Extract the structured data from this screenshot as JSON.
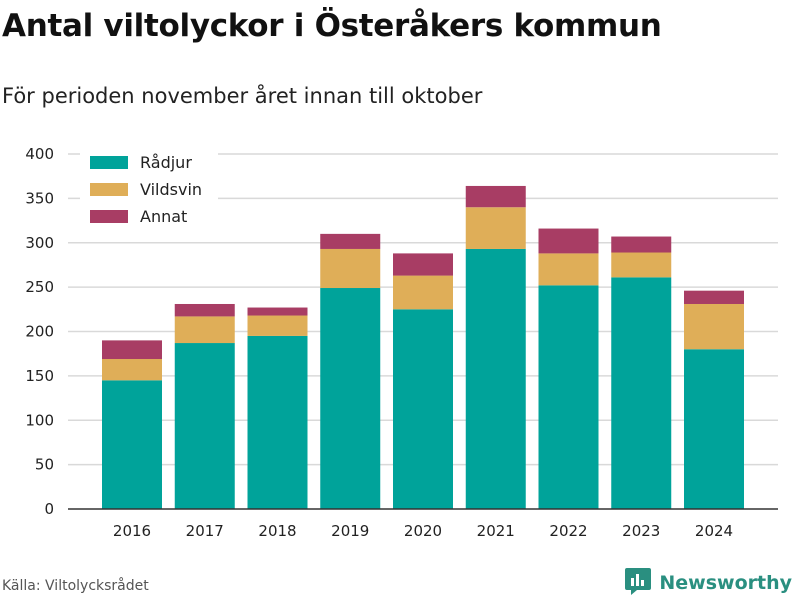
{
  "header": {
    "title": "Antal viltolyckor i Österåkers kommun",
    "subtitle": "För perioden november året innan till oktober"
  },
  "footer": {
    "source": "Källa: Viltolycksrådet",
    "brand": "Newsworthy",
    "brand_icon": "bar-chart-bubble-icon"
  },
  "colors": {
    "radjur": "#00a39a",
    "vildsvin": "#dfae58",
    "annat": "#a83d64",
    "brand": "#2a8f80",
    "grid": "#d9d9d9"
  },
  "chart_data": {
    "type": "bar",
    "stacked": true,
    "categories": [
      "2016",
      "2017",
      "2018",
      "2019",
      "2020",
      "2021",
      "2022",
      "2023",
      "2024"
    ],
    "series": [
      {
        "name": "Rådjur",
        "color": "#00a39a",
        "values": [
          145,
          187,
          195,
          249,
          225,
          293,
          252,
          261,
          180
        ]
      },
      {
        "name": "Vildsvin",
        "color": "#dfae58",
        "values": [
          24,
          30,
          23,
          44,
          38,
          47,
          36,
          28,
          51
        ]
      },
      {
        "name": "Annat",
        "color": "#a83d64",
        "values": [
          21,
          14,
          9,
          17,
          25,
          24,
          28,
          18,
          15
        ]
      }
    ],
    "ylim": [
      0,
      400
    ],
    "yticks": [
      0,
      50,
      100,
      150,
      200,
      250,
      300,
      350,
      400
    ],
    "grid": true,
    "legend_position": "top-left",
    "xlabel": "",
    "ylabel": ""
  }
}
